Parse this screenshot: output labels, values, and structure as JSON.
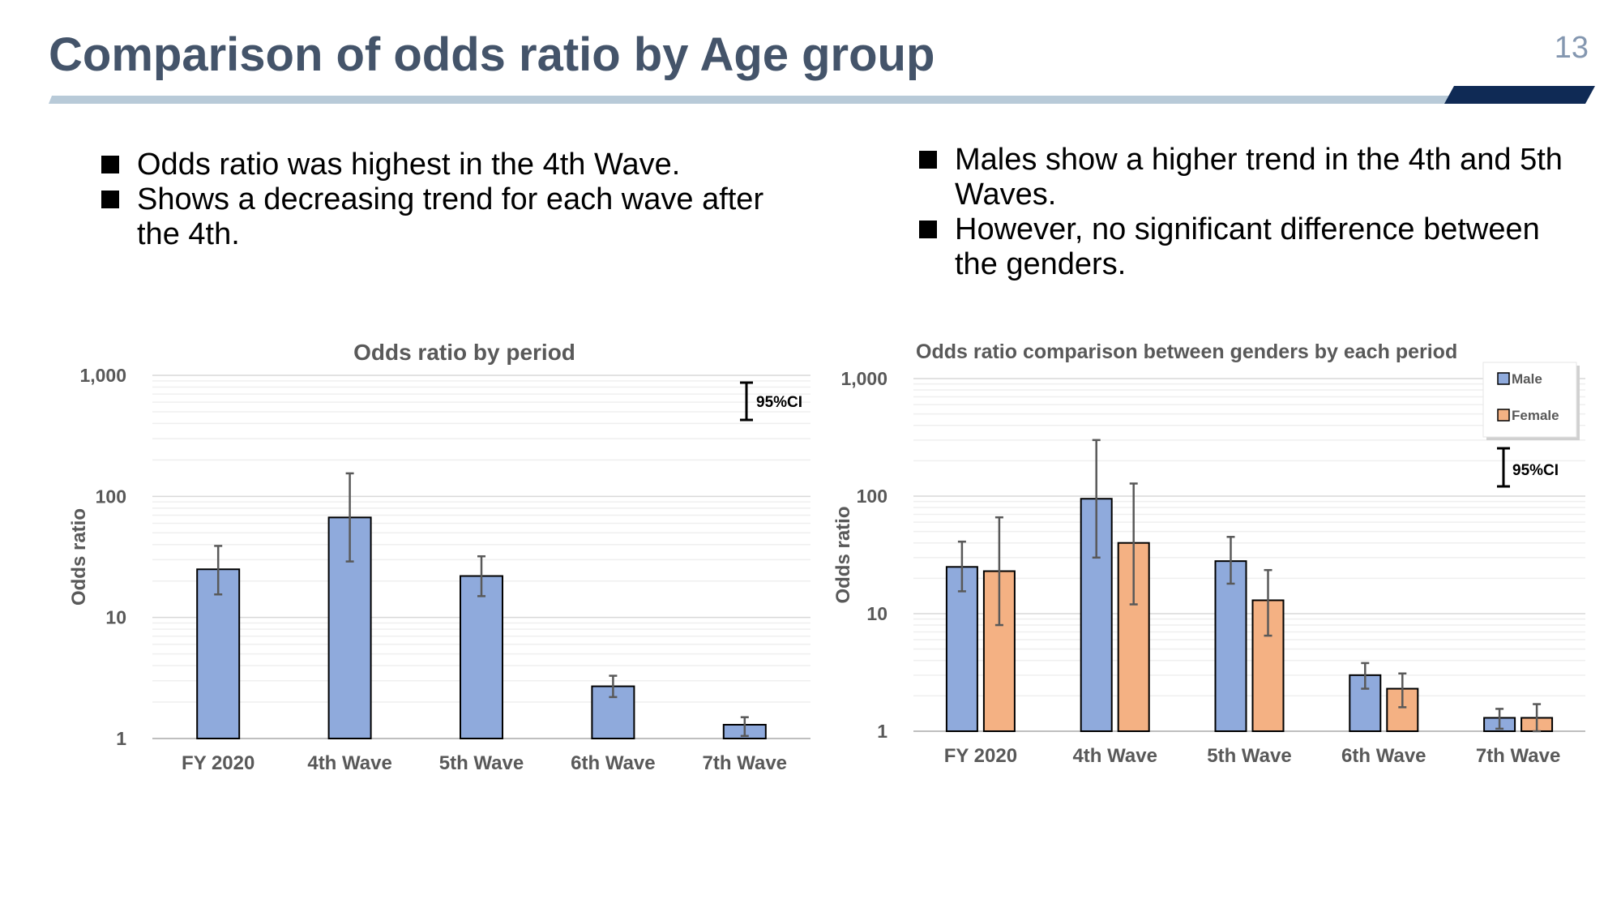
{
  "slide": {
    "title": "Comparison of odds ratio by Age group",
    "page_number": "13",
    "colors": {
      "title": "#44546a",
      "rule_light": "#b8cad8",
      "rule_dark": "#0f2a55"
    }
  },
  "bullets_left": [
    "Odds ratio was highest in the 4th Wave.",
    "Shows a decreasing trend for each wave after the 4th."
  ],
  "bullets_right": [
    "Males show a higher trend in the 4th and 5th Waves.",
    "However, no significant difference between the genders."
  ],
  "chart_data": [
    {
      "type": "bar",
      "title": "Odds ratio by period",
      "ylabel": "Odds ratio",
      "yscale": "log",
      "ylim": [
        1,
        1000
      ],
      "yticks": [
        "1",
        "10",
        "100",
        "1,000"
      ],
      "categories": [
        "FY 2020",
        "4th Wave",
        "5th Wave",
        "6th Wave",
        "7th Wave"
      ],
      "ci_label": "95%CI",
      "series": [
        {
          "color": "#8faadc",
          "values": [
            25,
            67,
            22,
            2.7,
            1.3
          ],
          "ci_low": [
            15.5,
            29,
            15,
            2.2,
            1.05
          ],
          "ci_high": [
            39,
            155,
            32,
            3.3,
            1.5
          ]
        }
      ]
    },
    {
      "type": "bar",
      "title": "Odds ratio comparison between genders by each period",
      "ylabel": "Odds ratio",
      "yscale": "log",
      "ylim": [
        1,
        1000
      ],
      "yticks": [
        "1",
        "10",
        "100",
        "1,000"
      ],
      "categories": [
        "FY 2020",
        "4th Wave",
        "5th Wave",
        "6th Wave",
        "7th Wave"
      ],
      "ci_label": "95%CI",
      "legend": "top-right",
      "series": [
        {
          "name": "Male",
          "color": "#8faadc",
          "values": [
            25,
            95,
            28,
            3.0,
            1.3
          ],
          "ci_low": [
            15.5,
            30,
            18,
            2.3,
            1.05
          ],
          "ci_high": [
            41,
            300,
            45,
            3.8,
            1.55
          ]
        },
        {
          "name": "Female",
          "color": "#f4b183",
          "values": [
            23,
            40,
            13,
            2.3,
            1.3
          ],
          "ci_low": [
            8,
            12,
            6.5,
            1.6,
            1.0
          ],
          "ci_high": [
            66,
            128,
            23.5,
            3.1,
            1.7
          ]
        }
      ]
    }
  ]
}
